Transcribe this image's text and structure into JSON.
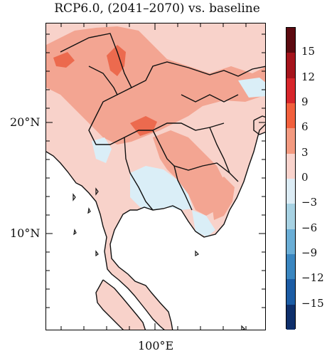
{
  "title": "RCP6.0, (2041–2070) vs. baseline",
  "axes": {
    "lat_labels": [
      {
        "text": "20°N",
        "lat": 20
      },
      {
        "text": "10°N",
        "lat": 10
      }
    ],
    "lon_labels": [
      {
        "text": "100°E",
        "lon": 100
      }
    ],
    "lon_range": [
      95,
      110
    ],
    "lat_range": [
      5,
      29
    ]
  },
  "colorbar": {
    "levels": [
      15,
      12,
      9,
      6,
      3,
      0,
      -3,
      -6,
      -9,
      -12,
      -15
    ],
    "colors": [
      "#5c0a10",
      "#a5141c",
      "#d7262b",
      "#f2603d",
      "#f49a80",
      "#f9d3cc",
      "#dcecf5",
      "#a7d2e3",
      "#6aaed6",
      "#3a86c0",
      "#1c5ca4",
      "#0e2f6b"
    ]
  },
  "map_colors": {
    "land_light": "#f8d2ca",
    "land_mid": "#f3a592",
    "land_high": "#ec6a4e",
    "cool": "#daeef7",
    "sea": "#ffffff"
  }
}
